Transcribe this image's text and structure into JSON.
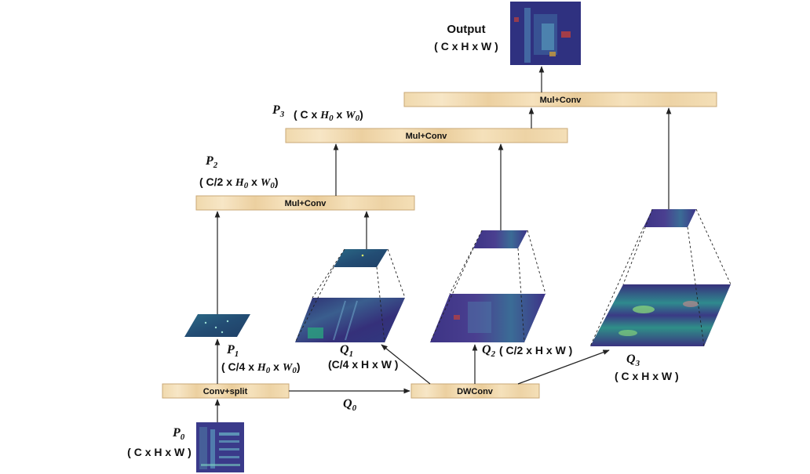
{
  "boxes": {
    "conv_split": "Conv+split",
    "dwconv": "DWConv",
    "mul_conv_1": "Mul+Conv",
    "mul_conv_2": "Mul+Conv",
    "mul_conv_3": "Mul+Conv"
  },
  "labels": {
    "output": {
      "name": "Output",
      "dims": "( C x H x W )"
    },
    "p0": {
      "name": "P",
      "sub": "0",
      "dims": "( C x H x W )"
    },
    "p1": {
      "name": "P",
      "sub": "1",
      "dims_pre": "( C/4 x ",
      "dims_h": "H",
      "dims_h_sub": "0",
      "dims_mid": " x ",
      "dims_w": "W",
      "dims_w_sub": "0",
      "dims_post": ")"
    },
    "p2": {
      "name": "P",
      "sub": "2",
      "dims_pre": "( C/2 x ",
      "dims_h": "H",
      "dims_h_sub": "0",
      "dims_mid": " x ",
      "dims_w": "W",
      "dims_w_sub": "0",
      "dims_post": ")"
    },
    "p3": {
      "name": "P",
      "sub": "3",
      "dims_pre": "( C x ",
      "dims_h": "H",
      "dims_h_sub": "0",
      "dims_mid": " x ",
      "dims_w": "W",
      "dims_w_sub": "0",
      "dims_post": ")"
    },
    "q0": {
      "name": "Q",
      "sub": "0"
    },
    "q1": {
      "name": "Q",
      "sub": "1",
      "dims": "(C/4 x H x W )"
    },
    "q2": {
      "name": "Q",
      "sub": "2",
      "dims": "( C/2 x H x W )"
    },
    "q3": {
      "name": "Q",
      "sub": "3",
      "dims": "( C x H x W )"
    }
  },
  "colors": {
    "box_fill": "#f1dcb4",
    "box_grain": "#e2c38f",
    "feature_dark": "#2e2a6e",
    "feature_mid": "#3b5b8c",
    "feature_teal": "#2a8a8a",
    "feature_green": "#7ed36a",
    "line": "#222222"
  }
}
